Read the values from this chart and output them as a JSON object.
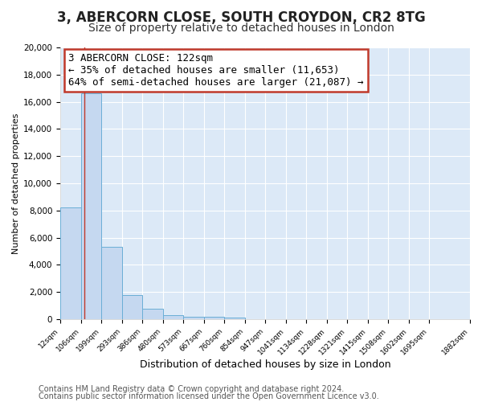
{
  "title": "3, ABERCORN CLOSE, SOUTH CROYDON, CR2 8TG",
  "subtitle": "Size of property relative to detached houses in London",
  "xlabel": "Distribution of detached houses by size in London",
  "ylabel": "Number of detached properties",
  "bar_values": [
    8200,
    16600,
    5300,
    1800,
    750,
    300,
    200,
    150,
    100,
    0,
    0,
    0,
    0,
    0,
    0,
    0,
    0,
    0,
    0
  ],
  "bar_edges": [
    12,
    106,
    199,
    293,
    386,
    480,
    573,
    667,
    760,
    854,
    947,
    1041,
    1134,
    1228,
    1321,
    1415,
    1508,
    1602,
    1695,
    1882
  ],
  "tick_labels": [
    "12sqm",
    "106sqm",
    "199sqm",
    "293sqm",
    "386sqm",
    "480sqm",
    "573sqm",
    "667sqm",
    "760sqm",
    "854sqm",
    "947sqm",
    "1041sqm",
    "1134sqm",
    "1228sqm",
    "1321sqm",
    "1415sqm",
    "1508sqm",
    "1602sqm",
    "1695sqm",
    "1882sqm"
  ],
  "bar_color": "#c5d8f0",
  "bar_edge_color": "#6aaed6",
  "property_line_x": 122,
  "property_line_color": "#c0392b",
  "ann_line1": "3 ABERCORN CLOSE: 122sqm",
  "ann_line2": "← 35% of detached houses are smaller (11,653)",
  "ann_line3": "64% of semi-detached houses are larger (21,087) →",
  "ylim": [
    0,
    20000
  ],
  "yticks": [
    0,
    2000,
    4000,
    6000,
    8000,
    10000,
    12000,
    14000,
    16000,
    18000,
    20000
  ],
  "bg_color": "#ffffff",
  "plot_bg_color": "#dce9f7",
  "grid_color": "#ffffff",
  "footer_line1": "Contains HM Land Registry data © Crown copyright and database right 2024.",
  "footer_line2": "Contains public sector information licensed under the Open Government Licence v3.0.",
  "title_fontsize": 12,
  "subtitle_fontsize": 10,
  "annotation_fontsize": 9,
  "footer_fontsize": 7,
  "ylabel_fontsize": 8,
  "xlabel_fontsize": 9
}
